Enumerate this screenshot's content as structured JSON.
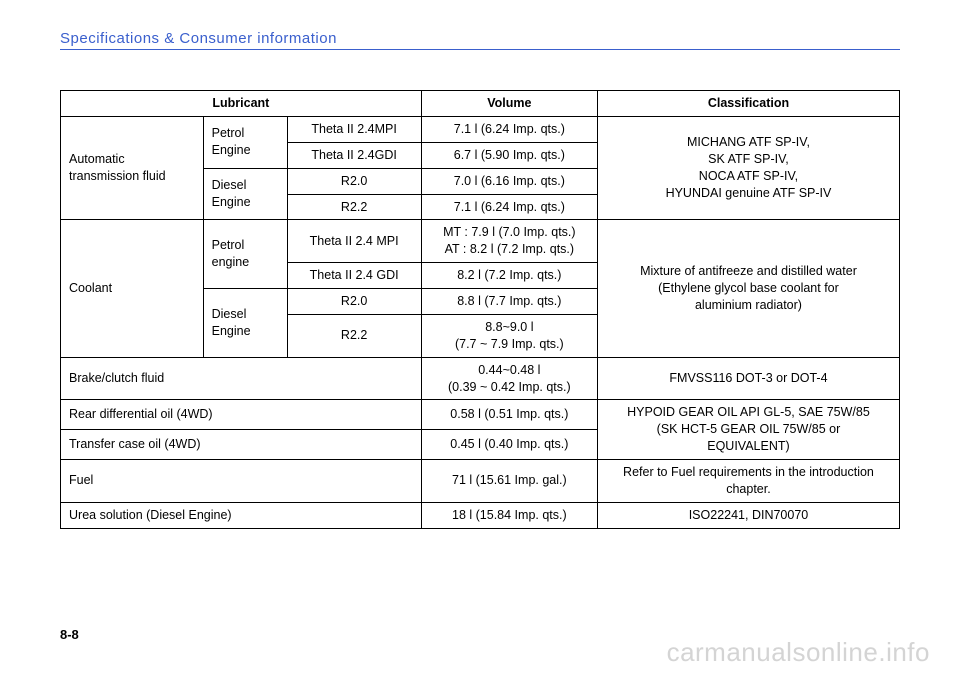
{
  "sectionTitle": "Specifications & Consumer information",
  "pageNum": "8-8",
  "watermark": "carmanualsonline.info",
  "headers": {
    "c1": "Lubricant",
    "c2": "Volume",
    "c3": "Classification"
  },
  "atf": {
    "label": "Automatic transmission fluid",
    "petrol": "Petrol Engine",
    "diesel": "Diesel Engine",
    "r1": {
      "spec": "Theta II 2.4MPI",
      "vol": "7.1 l (6.24 Imp. qts.)"
    },
    "r2": {
      "spec": "Theta II 2.4GDI",
      "vol": "6.7 l (5.90 Imp. qts.)"
    },
    "r3": {
      "spec": "R2.0",
      "vol": "7.0 l (6.16 Imp. qts.)"
    },
    "r4": {
      "spec": "R2.2",
      "vol": "7.1 l (6.24 Imp. qts.)"
    },
    "class": "MICHANG ATF SP-IV,\nSK ATF SP-IV,\nNOCA ATF SP-IV,\nHYUNDAI genuine ATF SP-IV"
  },
  "coolant": {
    "label": "Coolant",
    "petrol": "Petrol engine",
    "diesel": "Diesel Engine",
    "r1": {
      "spec": "Theta II 2.4 MPI",
      "vol": "MT : 7.9 l (7.0 Imp. qts.)\nAT : 8.2 l (7.2 Imp. qts.)"
    },
    "r2": {
      "spec": "Theta II 2.4 GDI",
      "vol": "8.2 l (7.2 Imp. qts.)"
    },
    "r3": {
      "spec": "R2.0",
      "vol": "8.8 l (7.7 Imp. qts.)"
    },
    "r4": {
      "spec": "R2.2",
      "vol": "8.8~9.0 l\n(7.7 ~ 7.9 Imp. qts.)"
    },
    "class": "Mixture of antifreeze and distilled water\n(Ethylene glycol base coolant for\naluminium radiator)"
  },
  "brake": {
    "label": "Brake/clutch fluid",
    "vol": "0.44~0.48 l\n(0.39 ~ 0.42 Imp. qts.)",
    "class": "FMVSS116 DOT-3 or DOT-4"
  },
  "rearDiff": {
    "label": "Rear differential oil (4WD)",
    "vol": "0.58 l (0.51 Imp. qts.)"
  },
  "transfer": {
    "label": "Transfer case oil (4WD)",
    "vol": "0.45 l (0.40 Imp. qts.)"
  },
  "gearClass": "HYPOID GEAR OIL API GL-5, SAE 75W/85\n(SK HCT-5 GEAR OIL 75W/85 or\nEQUIVALENT)",
  "fuel": {
    "label": "Fuel",
    "vol": "71 l (15.61 Imp. gal.)",
    "class": "Refer to Fuel requirements in the introduction\nchapter."
  },
  "urea": {
    "label": "Urea solution (Diesel Engine)",
    "vol": "18 l (15.84 Imp. qts.)",
    "class": "ISO22241, DIN70070"
  },
  "colWidths": {
    "c1a": "17%",
    "c1b": "10%",
    "c1c": "16%",
    "c2": "21%",
    "c3": "36%"
  }
}
